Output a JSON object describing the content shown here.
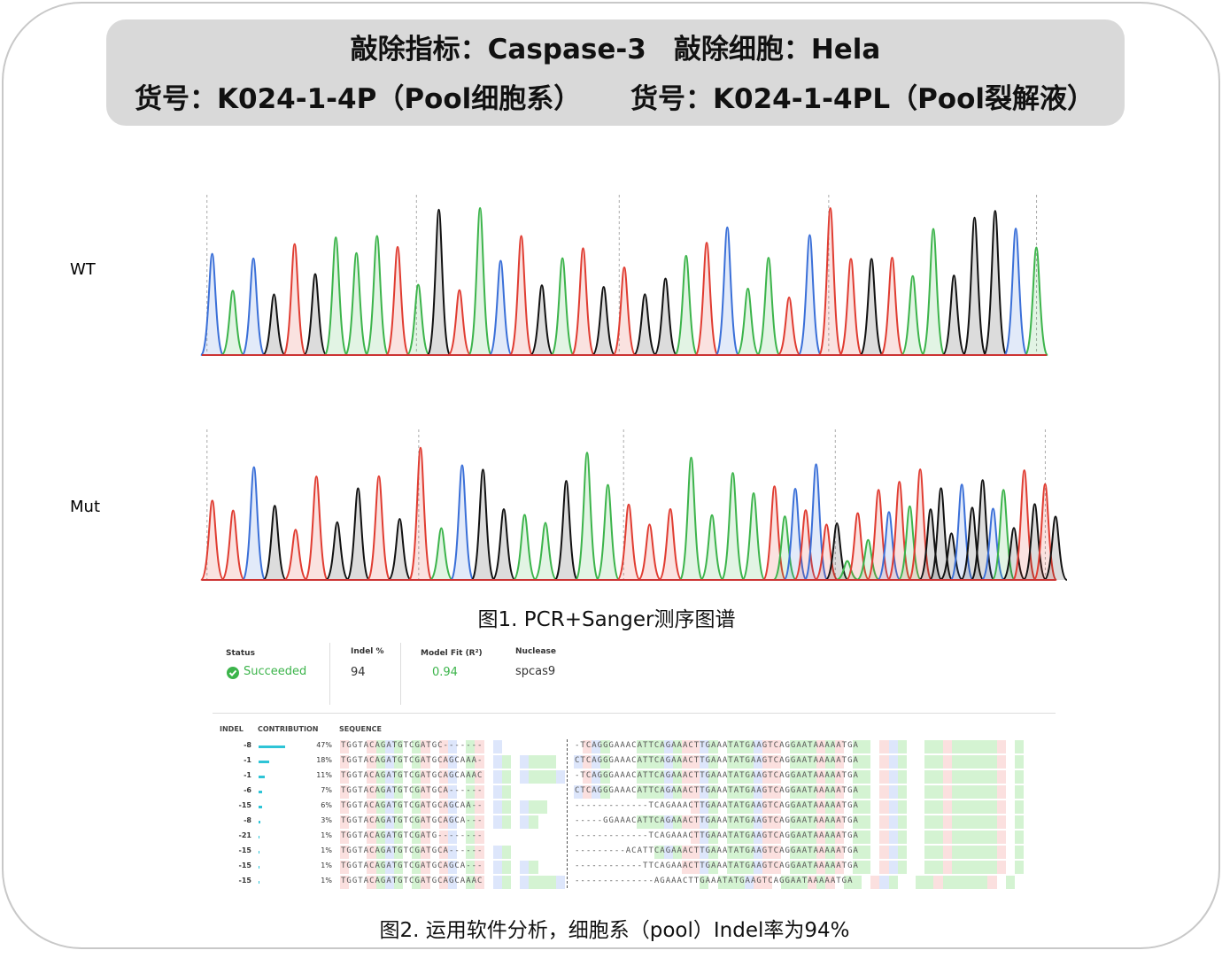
{
  "header": {
    "line1": "敲除指标：Caspase-3　敲除细胞：Hela",
    "line2_left": "货号：K024-1-4P（Pool细胞系）",
    "line2_right": "货号：K024-1-4PL（Pool裂解液）"
  },
  "traces": {
    "wt_label": "WT",
    "mut_label": "Mut",
    "caption": "图1. PCR+Sanger测序图谱"
  },
  "summary": {
    "status_label": "Status",
    "status_value": "Succeeded",
    "indel_label": "Indel %",
    "indel_value": "94",
    "fit_label": "Model Fit (R²)",
    "fit_value": "0.94",
    "nuclease_label": "Nuclease",
    "nuclease_value": "spcas9"
  },
  "table": {
    "headers": [
      "INDEL",
      "CONTRIBUTION",
      "SEQUENCE"
    ],
    "rows": [
      [
        "-8",
        "47%",
        "TGGTACAGATGTCGATGC-------",
        "-TCAGGGAAACATTCAGAAACTTGAAATATGAAGTCAGGAATAAAAATGA"
      ],
      [
        "-1",
        "18%",
        "TGGTACAGATGTCGATGCAGCAAA-",
        "CTCAGGGAAACATTCAGAAACTTGAAATATGAAGTCAGGAATAAAAATGA"
      ],
      [
        "-1",
        "11%",
        "TGGTACAGATGTCGATGCAGCAAAC",
        "-TCAGGGAAACATTCAGAAACTTGAAATATGAAGTCAGGAATAAAAATGA"
      ],
      [
        "-6",
        "7%",
        "TGGTACAGATGTCGATGCA------",
        "CTCAGGGAAACATTCAGAAACTTGAAATATGAAGTCAGGAATAAAAATGA"
      ],
      [
        "-15",
        "6%",
        "TGGTACAGATGTCGATGCAGCAA--",
        "-------------TCAGAAACTTGAAATATGAAGTCAGGAATAAAAATGA"
      ],
      [
        "-8",
        "3%",
        "TGGTACAGATGTCGATGCAGCA---",
        "-----GGAAACATTCAGAAACTTGAAATATGAAGTCAGGAATAAAAATGA"
      ],
      [
        "-21",
        "1%",
        "TGGTACAGATGTCGATG--------",
        "-------------TCAGAAACTTGAAATATGAAGTCAGGAATAAAAATGA"
      ],
      [
        "-15",
        "1%",
        "TGGTACAGATGTCGATGCA------",
        "---------ACATTCAGAAACTTGAAATATGAAGTCAGGAATAAAAATGA"
      ],
      [
        "-15",
        "1%",
        "TGGTACAGATGTCGATGCAGCA---",
        "------------TTCAGAAACTTGAAATATGAAGTCAGGAATAAAAATGA"
      ],
      [
        "-15",
        "1%",
        "TGGTACAGATGTCGATGCAGCAAAC",
        "--------------AGAAACTTGAAATATGAAGTCAGGAATAAAAATGA"
      ]
    ]
  },
  "caption2": "图2. 运用软件分析，细胞系（pool）Indel率为94%"
}
